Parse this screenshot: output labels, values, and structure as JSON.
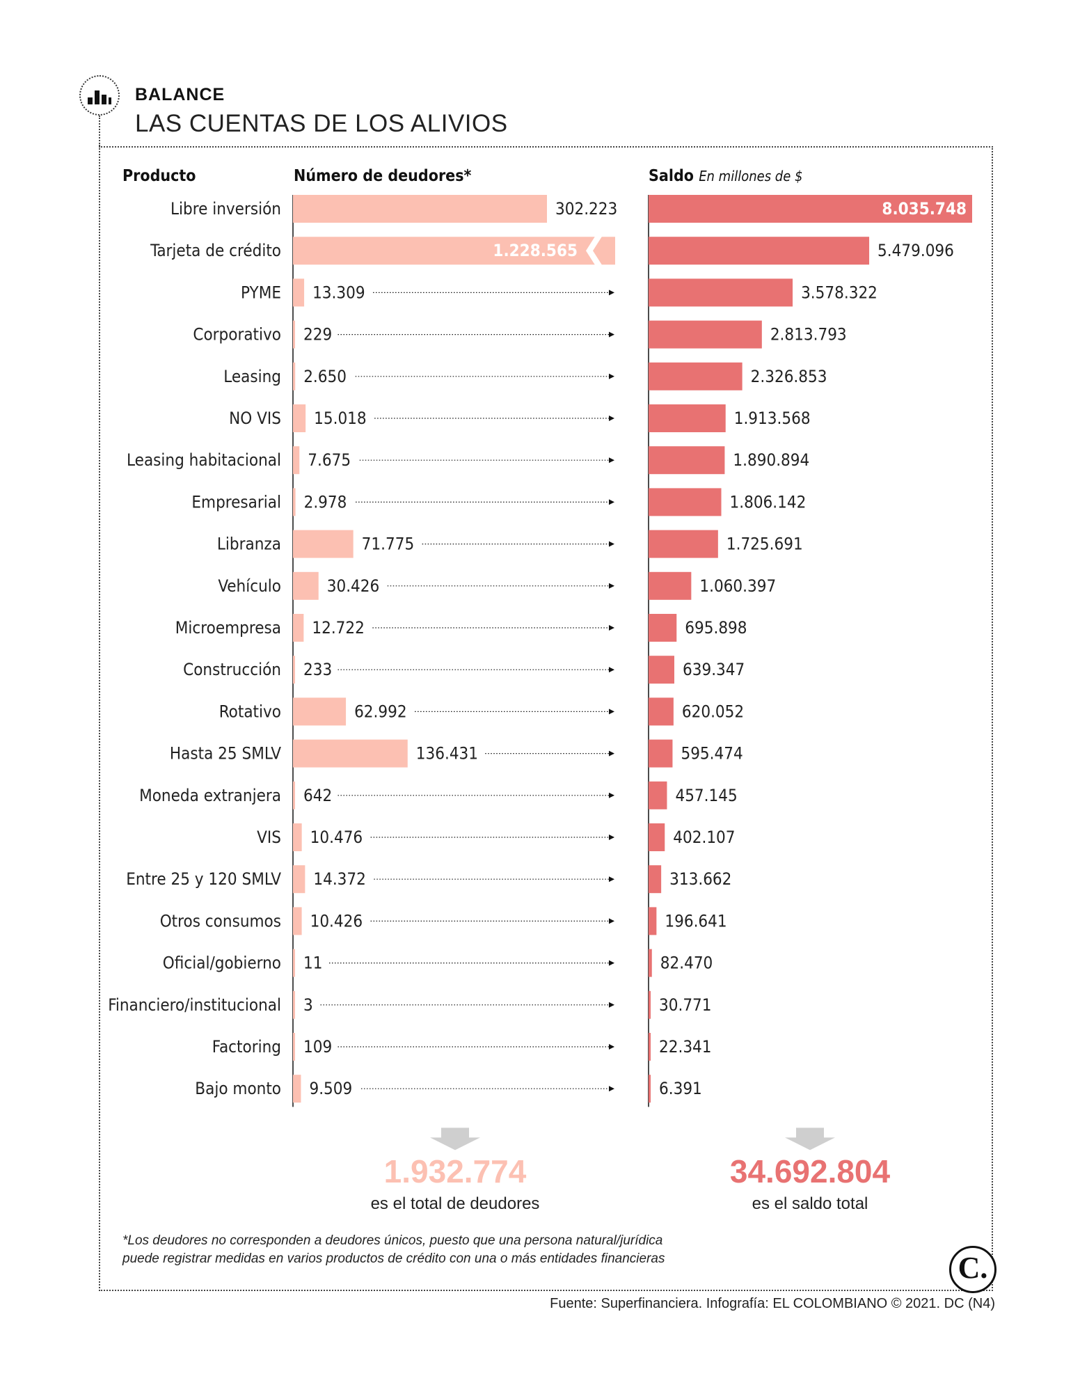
{
  "header": {
    "kicker": "BALANCE",
    "title": "LAS CUENTAS DE LOS ALIVIOS"
  },
  "columns": {
    "product": "Producto",
    "debtors": "Número de deudores*",
    "balance": "Saldo",
    "balance_unit": "En millones de $"
  },
  "chart_data": {
    "type": "bar",
    "title": "LAS CUENTAS DE LOS ALIVIOS",
    "categories": [
      "Libre inversión",
      "Tarjeta de crédito",
      "PYME",
      "Corporativo",
      "Leasing",
      "NO VIS",
      "Leasing habitacional",
      "Empresarial",
      "Libranza",
      "Vehículo",
      "Microempresa",
      "Construcción",
      "Rotativo",
      "Hasta 25 SMLV",
      "Moneda extranjera",
      "VIS",
      "Entre 25 y 120 SMLV",
      "Otros consumos",
      "Oficial/gobierno",
      "Financiero/institucional",
      "Factoring",
      "Bajo monto"
    ],
    "series": [
      {
        "name": "Número de deudores*",
        "color": "#fcc0b2",
        "values": [
          302223,
          1228565,
          13309,
          229,
          2650,
          15018,
          7675,
          2978,
          71775,
          30426,
          12722,
          233,
          62992,
          136431,
          642,
          10476,
          14372,
          10426,
          11,
          3,
          109,
          9509
        ],
        "labels": [
          "302.223",
          "1.228.565",
          "13.309",
          "229",
          "2.650",
          "15.018",
          "7.675",
          "2.978",
          "71.775",
          "30.426",
          "12.722",
          "233",
          "62.992",
          "136.431",
          "642",
          "10.476",
          "14.372",
          "10.426",
          "11",
          "3",
          "109",
          "9.509"
        ],
        "axis_max": 302223,
        "truncated": [
          1
        ]
      },
      {
        "name": "Saldo",
        "unit": "En millones de $",
        "color": "#e87272",
        "values": [
          8035748,
          5479096,
          3578322,
          2813793,
          2326853,
          1913568,
          1890894,
          1806142,
          1725691,
          1060397,
          695898,
          639347,
          620052,
          595474,
          457145,
          402107,
          313662,
          196641,
          82470,
          30771,
          22341,
          6391
        ],
        "labels": [
          "8.035.748",
          "5.479.096",
          "3.578.322",
          "2.813.793",
          "2.326.853",
          "1.913.568",
          "1.890.894",
          "1.806.142",
          "1.725.691",
          "1.060.397",
          "695.898",
          "639.347",
          "620.052",
          "595.474",
          "457.145",
          "402.107",
          "313.662",
          "196.641",
          "82.470",
          "30.771",
          "22.341",
          "6.391"
        ],
        "axis_max": 8035748
      }
    ]
  },
  "totals": {
    "debtors_value": "1.932.774",
    "debtors_label": "es el total de deudores",
    "debtors_color": "#fcc0b2",
    "balance_value": "34.692.804",
    "balance_label": "es el saldo total",
    "balance_color": "#e87272"
  },
  "footnote": {
    "line1": "*Los deudores no corresponden a deudores únicos, puesto que una persona natural/jurídica",
    "line2": "puede registrar medidas en varios productos de crédito con una o más entidades financieras"
  },
  "logo": "C.",
  "source": "Fuente: Superfinanciera. Infografía: EL COLOMBIANO © 2021. DC (N4)"
}
